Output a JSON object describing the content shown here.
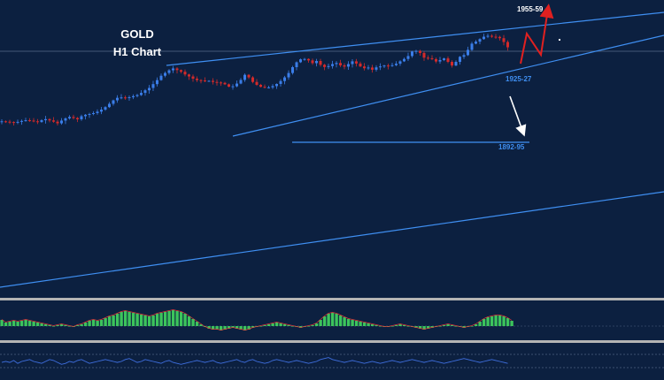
{
  "chart_data": {
    "type": "candlestick",
    "title": "GOLD",
    "subtitle": "H1 Chart",
    "series": [
      {
        "name": "price",
        "values": [
          1905.0,
          1904.8,
          1904.6,
          1904.4,
          1904.7,
          1905.2,
          1905.6,
          1905.4,
          1905.0,
          1904.6,
          1905.6,
          1906.2,
          1905.5,
          1904.8,
          1903.9,
          1905.4,
          1906.6,
          1907.4,
          1906.8,
          1906.1,
          1907.8,
          1908.6,
          1909.0,
          1909.5,
          1910.3,
          1911.4,
          1912.8,
          1914.6,
          1916.5,
          1917.9,
          1918.1,
          1917.9,
          1918.2,
          1918.8,
          1919.4,
          1920.6,
          1922.0,
          1923.3,
          1925.4,
          1927.6,
          1930.0,
          1931.5,
          1933.0,
          1934.0,
          1933.1,
          1932.2,
          1930.7,
          1929.6,
          1928.4,
          1927.6,
          1927.4,
          1927.2,
          1927.2,
          1926.6,
          1926.3,
          1926.1,
          1925.3,
          1924.0,
          1924.2,
          1925.7,
          1927.7,
          1930.5,
          1929.1,
          1926.6,
          1925.0,
          1923.9,
          1923.5,
          1923.6,
          1924.3,
          1925.5,
          1927.1,
          1929.1,
          1931.5,
          1934.7,
          1937.4,
          1939.0,
          1939.2,
          1938.4,
          1936.9,
          1938.1,
          1936.0,
          1934.8,
          1935.3,
          1936.4,
          1937.0,
          1935.7,
          1935.0,
          1936.4,
          1937.9,
          1936.7,
          1935.1,
          1934.1,
          1934.5,
          1933.3,
          1934.6,
          1935.1,
          1935.6,
          1935.4,
          1935.8,
          1936.6,
          1937.9,
          1939.2,
          1940.8,
          1943.3,
          1943.6,
          1942.5,
          1939.9,
          1939.6,
          1939.1,
          1937.8,
          1938.6,
          1939.5,
          1937.6,
          1935.6,
          1937.6,
          1940.4,
          1941.3,
          1944.2,
          1947.6,
          1948.7,
          1950.1,
          1951.4,
          1951.9,
          1951.4,
          1951.3,
          1950.6,
          1948.5,
          1945.6
        ]
      }
    ],
    "indicator_series": [
      {
        "values": [
          0.35,
          0.2,
          0.25,
          0.3,
          0.25,
          0.3,
          0.35,
          0.3,
          0.25,
          0.2,
          0.15,
          0.1,
          0.05,
          0.0,
          0.05,
          0.1,
          0.05,
          0.0,
          -0.05,
          0.05,
          0.1,
          0.2,
          0.3,
          0.35,
          0.3,
          0.35,
          0.45,
          0.55,
          0.6,
          0.7,
          0.8,
          0.85,
          0.8,
          0.75,
          0.7,
          0.65,
          0.6,
          0.55,
          0.6,
          0.7,
          0.75,
          0.8,
          0.85,
          0.9,
          0.85,
          0.8,
          0.7,
          0.55,
          0.4,
          0.25,
          0.1,
          -0.05,
          -0.15,
          -0.2,
          -0.2,
          -0.25,
          -0.2,
          -0.15,
          -0.1,
          -0.15,
          -0.2,
          -0.25,
          -0.2,
          -0.1,
          -0.05,
          0.0,
          0.05,
          0.1,
          0.15,
          0.2,
          0.15,
          0.1,
          0.05,
          0.0,
          -0.05,
          -0.1,
          -0.05,
          0.0,
          0.05,
          0.15,
          0.35,
          0.55,
          0.7,
          0.75,
          0.7,
          0.6,
          0.5,
          0.4,
          0.35,
          0.3,
          0.25,
          0.2,
          0.15,
          0.1,
          0.05,
          0.0,
          -0.05,
          -0.05,
          0.0,
          0.05,
          0.1,
          0.05,
          0.0,
          -0.05,
          -0.1,
          -0.15,
          -0.2,
          -0.15,
          -0.1,
          -0.05,
          0.0,
          0.05,
          0.1,
          0.05,
          0.0,
          -0.05,
          -0.1,
          -0.05,
          0.0,
          0.1,
          0.25,
          0.4,
          0.5,
          0.55,
          0.6,
          0.6,
          0.55,
          0.45,
          0.3
        ]
      },
      {
        "values": [
          0.45,
          0.5,
          0.45,
          0.55,
          0.4,
          0.5,
          0.55,
          0.6,
          0.5,
          0.45,
          0.4,
          0.5,
          0.6,
          0.55,
          0.45,
          0.35,
          0.4,
          0.5,
          0.45,
          0.55,
          0.6,
          0.5,
          0.4,
          0.45,
          0.5,
          0.55,
          0.6,
          0.55,
          0.5,
          0.45,
          0.5,
          0.6,
          0.65,
          0.55,
          0.45,
          0.5,
          0.6,
          0.55,
          0.5,
          0.45,
          0.4,
          0.5,
          0.55,
          0.45,
          0.4,
          0.35,
          0.4,
          0.45,
          0.5,
          0.55,
          0.5,
          0.45,
          0.5,
          0.55,
          0.45,
          0.4,
          0.45,
          0.5,
          0.55,
          0.6,
          0.5,
          0.45,
          0.55,
          0.6,
          0.5,
          0.45,
          0.4,
          0.45,
          0.55,
          0.6,
          0.55,
          0.5,
          0.45,
          0.5,
          0.55,
          0.5,
          0.45,
          0.4,
          0.45,
          0.5,
          0.6,
          0.65,
          0.7,
          0.6,
          0.55,
          0.5,
          0.45,
          0.5,
          0.55,
          0.5,
          0.45,
          0.4,
          0.45,
          0.5,
          0.45,
          0.4,
          0.45,
          0.5,
          0.55,
          0.5,
          0.45,
          0.5,
          0.55,
          0.6,
          0.55,
          0.5,
          0.45,
          0.5,
          0.55,
          0.5,
          0.45,
          0.4,
          0.45,
          0.5,
          0.55,
          0.6,
          0.65,
          0.6,
          0.55,
          0.5,
          0.45,
          0.5,
          0.55,
          0.6,
          0.55,
          0.5,
          0.45,
          0.4
        ]
      }
    ],
    "levels": [
      {
        "label": "1955-59",
        "value": 1957.0
      },
      {
        "label": "1925-27",
        "value": 1926.0
      },
      {
        "label": "1892-95",
        "value": 1893.5
      }
    ],
    "colors": {
      "background": "#0c2040",
      "bull": "#3a7de8",
      "bear": "#d42a2a",
      "trendline": "#3f8ff2",
      "level_label": "#3f8ff2",
      "hist_fill": "#3cc45c",
      "hist_edge": "#e23a3a",
      "osc_line": "#3f6fe0",
      "divider": "#b4b4b4",
      "projection_up": "#e02020",
      "projection_down": "#ffffff",
      "title": "#ffffff"
    },
    "legend": "none",
    "grid": false
  }
}
